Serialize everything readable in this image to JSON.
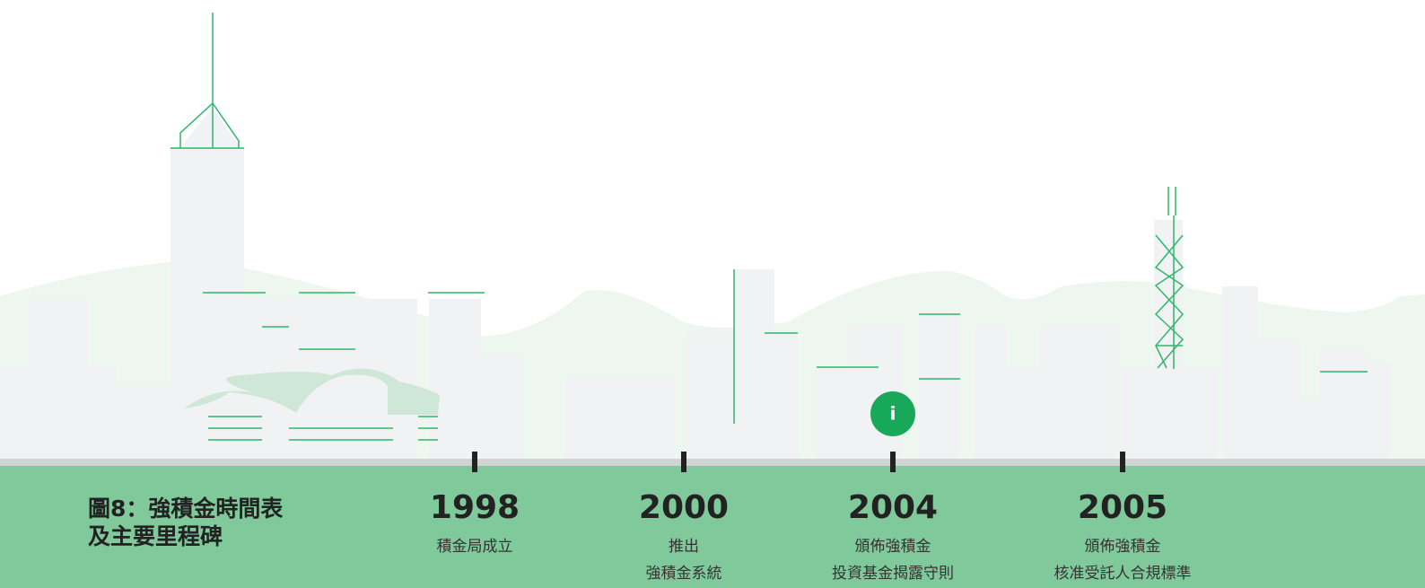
{
  "title": [
    "圖8：強積金時間表",
    "及主要里程碑"
  ],
  "info_icon": "i",
  "milestones": [
    {
      "year": "1998",
      "lines": [
        "積金局成立"
      ]
    },
    {
      "year": "2000",
      "lines": [
        "推出",
        "強積金系統"
      ]
    },
    {
      "year": "2004",
      "lines": [
        "頒佈強積金",
        "投資基金揭露守則"
      ]
    },
    {
      "year": "2005",
      "lines": [
        "頒佈強積金",
        "核准受託人合規標準"
      ]
    }
  ]
}
